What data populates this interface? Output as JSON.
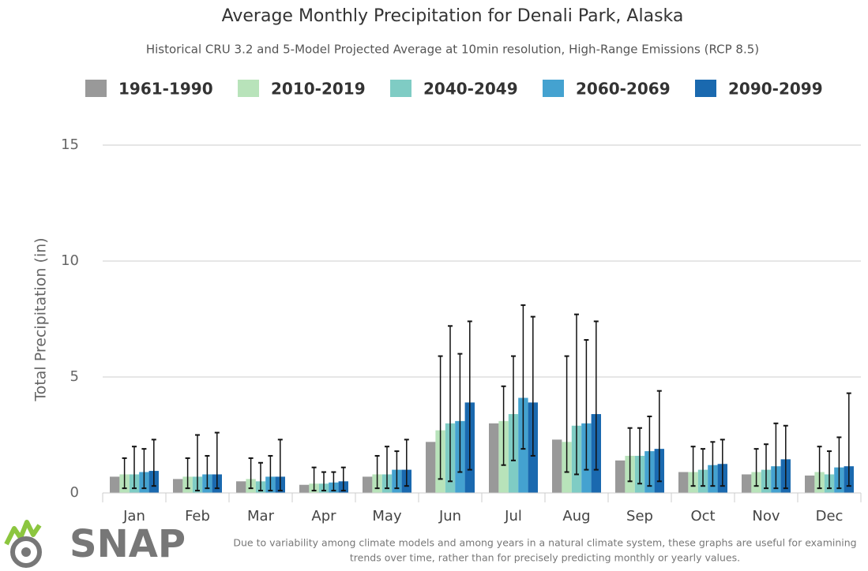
{
  "chart_data": {
    "type": "bar",
    "title": "Average Monthly Precipitation for Denali Park, Alaska",
    "subtitle": "Historical CRU 3.2 and 5-Model Projected Average at 10min resolution, High-Range Emissions (RCP 8.5)",
    "y_label": "Total Precipitation (in)",
    "categories": [
      "Jan",
      "Feb",
      "Mar",
      "Apr",
      "May",
      "Jun",
      "Jul",
      "Aug",
      "Sep",
      "Oct",
      "Nov",
      "Dec"
    ],
    "ylim": [
      0,
      15
    ],
    "yticks": [
      0,
      5,
      10,
      15
    ],
    "grid": true,
    "series": [
      {
        "name": "1961-1990",
        "color": "#999999",
        "values": [
          0.7,
          0.6,
          0.5,
          0.35,
          0.7,
          2.2,
          3.0,
          2.3,
          1.4,
          0.9,
          0.8,
          0.75
        ]
      },
      {
        "name": "2010-2019",
        "color": "#b8e3ba",
        "values": [
          0.8,
          0.7,
          0.6,
          0.4,
          0.8,
          2.7,
          3.1,
          2.2,
          1.6,
          0.9,
          0.9,
          0.9
        ],
        "lows": [
          0.2,
          0.2,
          0.2,
          0.1,
          0.2,
          0.6,
          1.2,
          0.9,
          0.5,
          0.3,
          0.3,
          0.2
        ],
        "highs": [
          1.5,
          1.5,
          1.5,
          1.1,
          1.6,
          5.9,
          4.6,
          5.9,
          2.8,
          2.0,
          1.9,
          2.0
        ]
      },
      {
        "name": "2040-2049",
        "color": "#7fccc4",
        "values": [
          0.8,
          0.7,
          0.5,
          0.4,
          0.8,
          3.0,
          3.4,
          2.9,
          1.6,
          1.0,
          1.0,
          0.8
        ],
        "lows": [
          0.2,
          0.1,
          0.1,
          0.1,
          0.2,
          0.5,
          1.4,
          0.8,
          0.4,
          0.3,
          0.2,
          0.2
        ],
        "highs": [
          2.0,
          2.5,
          1.3,
          0.9,
          2.0,
          7.2,
          5.9,
          7.7,
          2.8,
          1.9,
          2.1,
          1.8
        ]
      },
      {
        "name": "2060-2069",
        "color": "#44a2d0",
        "values": [
          0.9,
          0.8,
          0.7,
          0.45,
          1.0,
          3.1,
          4.1,
          3.0,
          1.8,
          1.2,
          1.15,
          1.1
        ],
        "lows": [
          0.2,
          0.2,
          0.1,
          0.1,
          0.2,
          0.9,
          1.9,
          1.0,
          0.3,
          0.3,
          0.2,
          0.2
        ],
        "highs": [
          1.9,
          1.6,
          1.6,
          0.9,
          1.8,
          6.0,
          8.1,
          6.6,
          3.3,
          2.2,
          3.0,
          2.4
        ]
      },
      {
        "name": "2090-2099",
        "color": "#1a69af",
        "values": [
          0.95,
          0.8,
          0.7,
          0.5,
          1.0,
          3.9,
          3.9,
          3.4,
          1.9,
          1.25,
          1.45,
          1.15
        ],
        "lows": [
          0.3,
          0.2,
          0.1,
          0.1,
          0.3,
          1.0,
          1.6,
          1.0,
          0.5,
          0.3,
          0.2,
          0.3
        ],
        "highs": [
          2.3,
          2.6,
          2.3,
          1.1,
          2.3,
          7.4,
          7.6,
          7.4,
          4.4,
          2.3,
          2.9,
          4.3
        ]
      }
    ],
    "footnote": [
      "Due to variability among climate models and among years in a natural climate system, these graphs are useful for examining",
      "trends over time, rather than for precisely predicting monthly or yearly values."
    ],
    "logo": "SNAP"
  }
}
